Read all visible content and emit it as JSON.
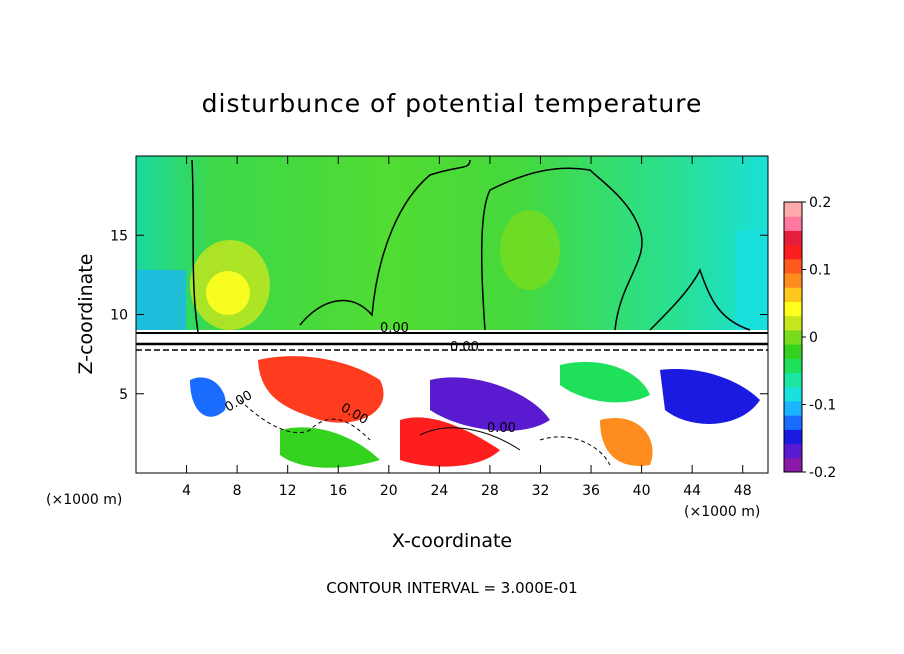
{
  "chart_data": {
    "type": "heatmap",
    "title": "disturbunce of potential temperature",
    "xlabel": "X-coordinate",
    "ylabel": "Z-coordinate",
    "x_unit_left": "(×1000 m)",
    "x_unit_right": "(×1000 m)",
    "xlim": [
      0,
      50
    ],
    "ylim": [
      0,
      20
    ],
    "x_ticks": [
      "4",
      "8",
      "12",
      "16",
      "20",
      "24",
      "28",
      "32",
      "36",
      "40",
      "44",
      "48"
    ],
    "y_ticks": [
      "5",
      "10",
      "15"
    ],
    "colorbar": {
      "min": -0.2,
      "max": 0.2,
      "tick_labels": [
        "0.2",
        "0.1",
        "0",
        "-0.1",
        "-0.2"
      ],
      "colors": [
        "#8a1aa8",
        "#5a1ad0",
        "#1a1ae0",
        "#1a6cff",
        "#1ab4ff",
        "#1ae0e0",
        "#1ae6a0",
        "#1ee05a",
        "#32d21e",
        "#78dc1e",
        "#c8e61e",
        "#ffff1e",
        "#ffc81e",
        "#ff8c1e",
        "#ff5a1e",
        "#ff1e1e",
        "#e61e3c",
        "#ff78a0",
        "#ffaaaa"
      ]
    },
    "contour_labels": [
      "0.00",
      "0.00",
      "0.00",
      "0.00",
      "0.00"
    ],
    "footer": "CONTOUR INTERVAL = 3.000E-01"
  }
}
